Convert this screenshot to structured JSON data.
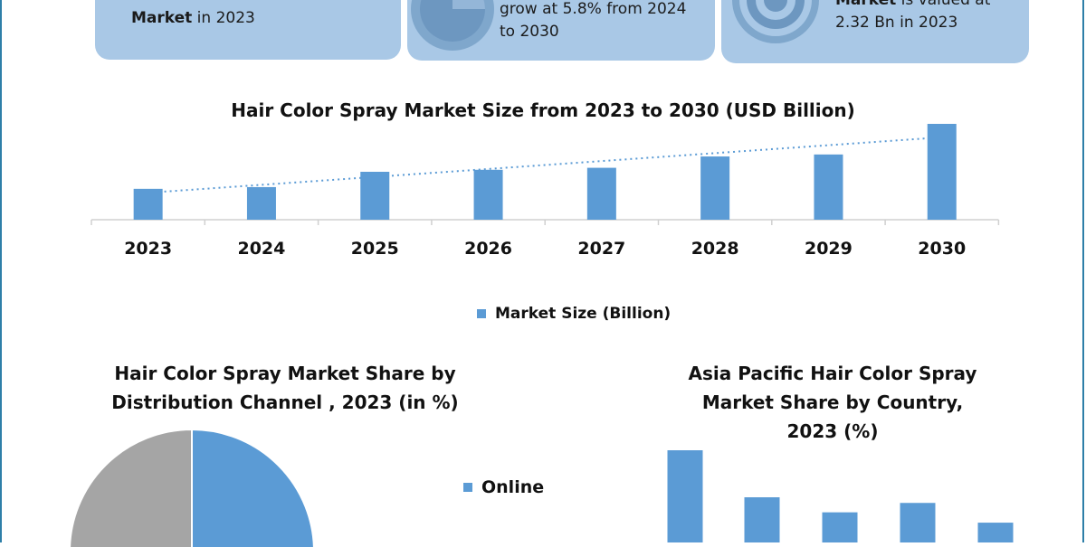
{
  "cards": [
    {
      "bold": "Market",
      "text": " in 2023"
    },
    {
      "line1": "grow at 5.8% from 2024",
      "line2": "to 2030"
    },
    {
      "bold": "Market",
      "text": " is valued at",
      "line2": "2.32 Bn in 2023"
    }
  ],
  "chart_data": [
    {
      "type": "bar",
      "title": "Hair Color Spray Market Size from 2023 to 2030 (USD Billion)",
      "categories": [
        "2023",
        "2024",
        "2025",
        "2026",
        "2027",
        "2028",
        "2029",
        "2030"
      ],
      "series": [
        {
          "name": "Market Size (Billion)",
          "values": [
            2.32,
            2.45,
            3.6,
            3.75,
            3.9,
            4.75,
            4.9,
            7.2
          ]
        }
      ],
      "trendline": "dotted linear",
      "legend": "bottom-center",
      "color": "#5b9bd5"
    },
    {
      "type": "pie",
      "title": "Hair Color Spray Market Share by Distribution Channel , 2023 (in %)",
      "slices": [
        {
          "name": "Online",
          "color": "#5b9bd5"
        },
        {
          "name": "",
          "color": "#a5a5a5"
        }
      ],
      "legend": [
        "Online"
      ]
    },
    {
      "type": "bar",
      "title": "Asia Pacific Hair Color Spray Market Share by Country, 2023 (%)",
      "values": [
        100,
        50,
        34,
        44,
        23
      ],
      "color": "#5b9bd5"
    }
  ]
}
